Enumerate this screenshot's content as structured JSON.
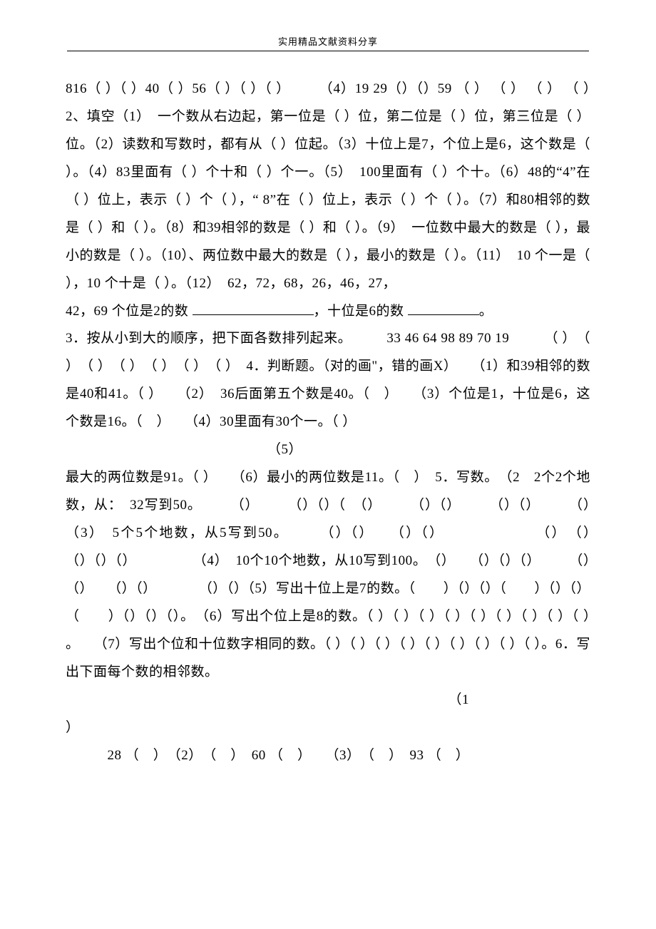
{
  "header": {
    "label": "实用精品文献资料分享"
  },
  "body": {
    "p1": "816（ ）（ ）40（ ）56（ ）（ ）（ ）　　　（4）19 29（）（）59 （ ） （ ） （ ） （ ）　2、填空（1）　一个数从右边起，第一位是（ ）位，第二位是（ ）位，第三位是（ ）位。（2）读数和写数时，都有从（ ）位起。（3）十位上是7，个位上是6，这个数是（ ）。（4）83里面有（ ）个十和（ ）个一。（5）　100里面有（ ）个十。（6）48的“4”在（ ）位上，表示（ ）个（ ），“ 8”在（ ）位上，表示（ ）个（ ）。（7）和80相邻的数是（ ）和（ ）。（8）和39相邻的数是（ ）和（ ）。（9）　一位数中最大的数是（ ），最小的数是（ ）。（10）、两位数中最大的数是（ ），最小的数是（ ）。（11）　10 个一是（ ），10 个十是（ ）。（12）　62，72，68，26，46，27，",
    "p2_a": "42，69 个位是2的数 ",
    "p2_b": "，十位是6的数 ",
    "p2_c": "。",
    "p3": "3．按从小到大的顺序，把下面各数排列起来。　　　33 46 64 98 89 70 19　　　（ ）　（ ）　（ ）　（ ）　（ ）　（ ）　（ ）　4．判断题。（对的画\"，错的画X）　　（1）和39相邻的数是40和41。（ ）　　（2）　36后面第五个数是40。（　）　　（3）个位是1，十位是6，这个数是16。（　）　　（4）30里面有30个一。（ ）",
    "p4": "　　　　　　　　　　　　　　　（5）",
    "p5": "最大的两位数是91。（ ）　　（6）最小的两位数是11。（　）　5．写数。　（2　2个2个地数，从：　32写到50。　　　（）　　　（）（）（　（）　　　（）（）　　　（）（）　　　（）　　（3）　5个5个地数，从5写到50。　　　（）（）　　（）（）　　　　　　　（）　（）　　（）（）（）　　　　　（4）　10个10个地数，从10写到100。　（）　　（）（）（）　　　（）（）　　（）（）　　　　（）（）（5）写出十位上是7的数。（　　）（）（）（　　）（）（）（　　）（）（）（）。　（6）写出个位上是8的数。（ ）（ ）（ ）（ ）（ ）（ ）（ ）（ ）（ ）　　。　　（7）写出个位和十位数字相同的数。（ ）（ ）（ ）（ ）（ ）（ ）（ ）（ ）（ ）。6．写出下面每个数的相邻数。",
    "p6": "　　　　　　　　　　　　　　　　　　　　　　　　　　　　（1",
    "p7": "）",
    "p8": "　　　28 （　）　（2）　（　）　60 （　）　　（3）　（　）　93 （　）"
  }
}
